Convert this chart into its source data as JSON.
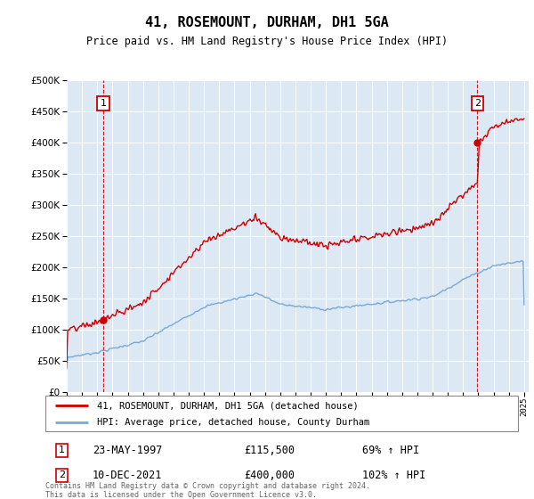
{
  "title": "41, ROSEMOUNT, DURHAM, DH1 5GA",
  "subtitle": "Price paid vs. HM Land Registry's House Price Index (HPI)",
  "ymax": 500000,
  "ymin": 0,
  "ytick_values": [
    0,
    50000,
    100000,
    150000,
    200000,
    250000,
    300000,
    350000,
    400000,
    450000,
    500000
  ],
  "x_start_year": 1995,
  "x_end_year": 2025,
  "sale1_date": 1997.39,
  "sale1_price": 115500,
  "sale2_date": 2021.94,
  "sale2_price": 400000,
  "hpi_color": "#7aaad4",
  "sale_color": "#cc0000",
  "bg_color": "#dde8f5",
  "grid_color": "#ffffff",
  "legend_label1": "41, ROSEMOUNT, DURHAM, DH1 5GA (detached house)",
  "legend_label2": "HPI: Average price, detached house, County Durham",
  "table_row1": [
    "1",
    "23-MAY-1997",
    "£115,500",
    "69% ↑ HPI"
  ],
  "table_row2": [
    "2",
    "10-DEC-2021",
    "£400,000",
    "102% ↑ HPI"
  ],
  "footnote": "Contains HM Land Registry data © Crown copyright and database right 2024.\nThis data is licensed under the Open Government Licence v3.0.",
  "vline_color": "#cc0000"
}
